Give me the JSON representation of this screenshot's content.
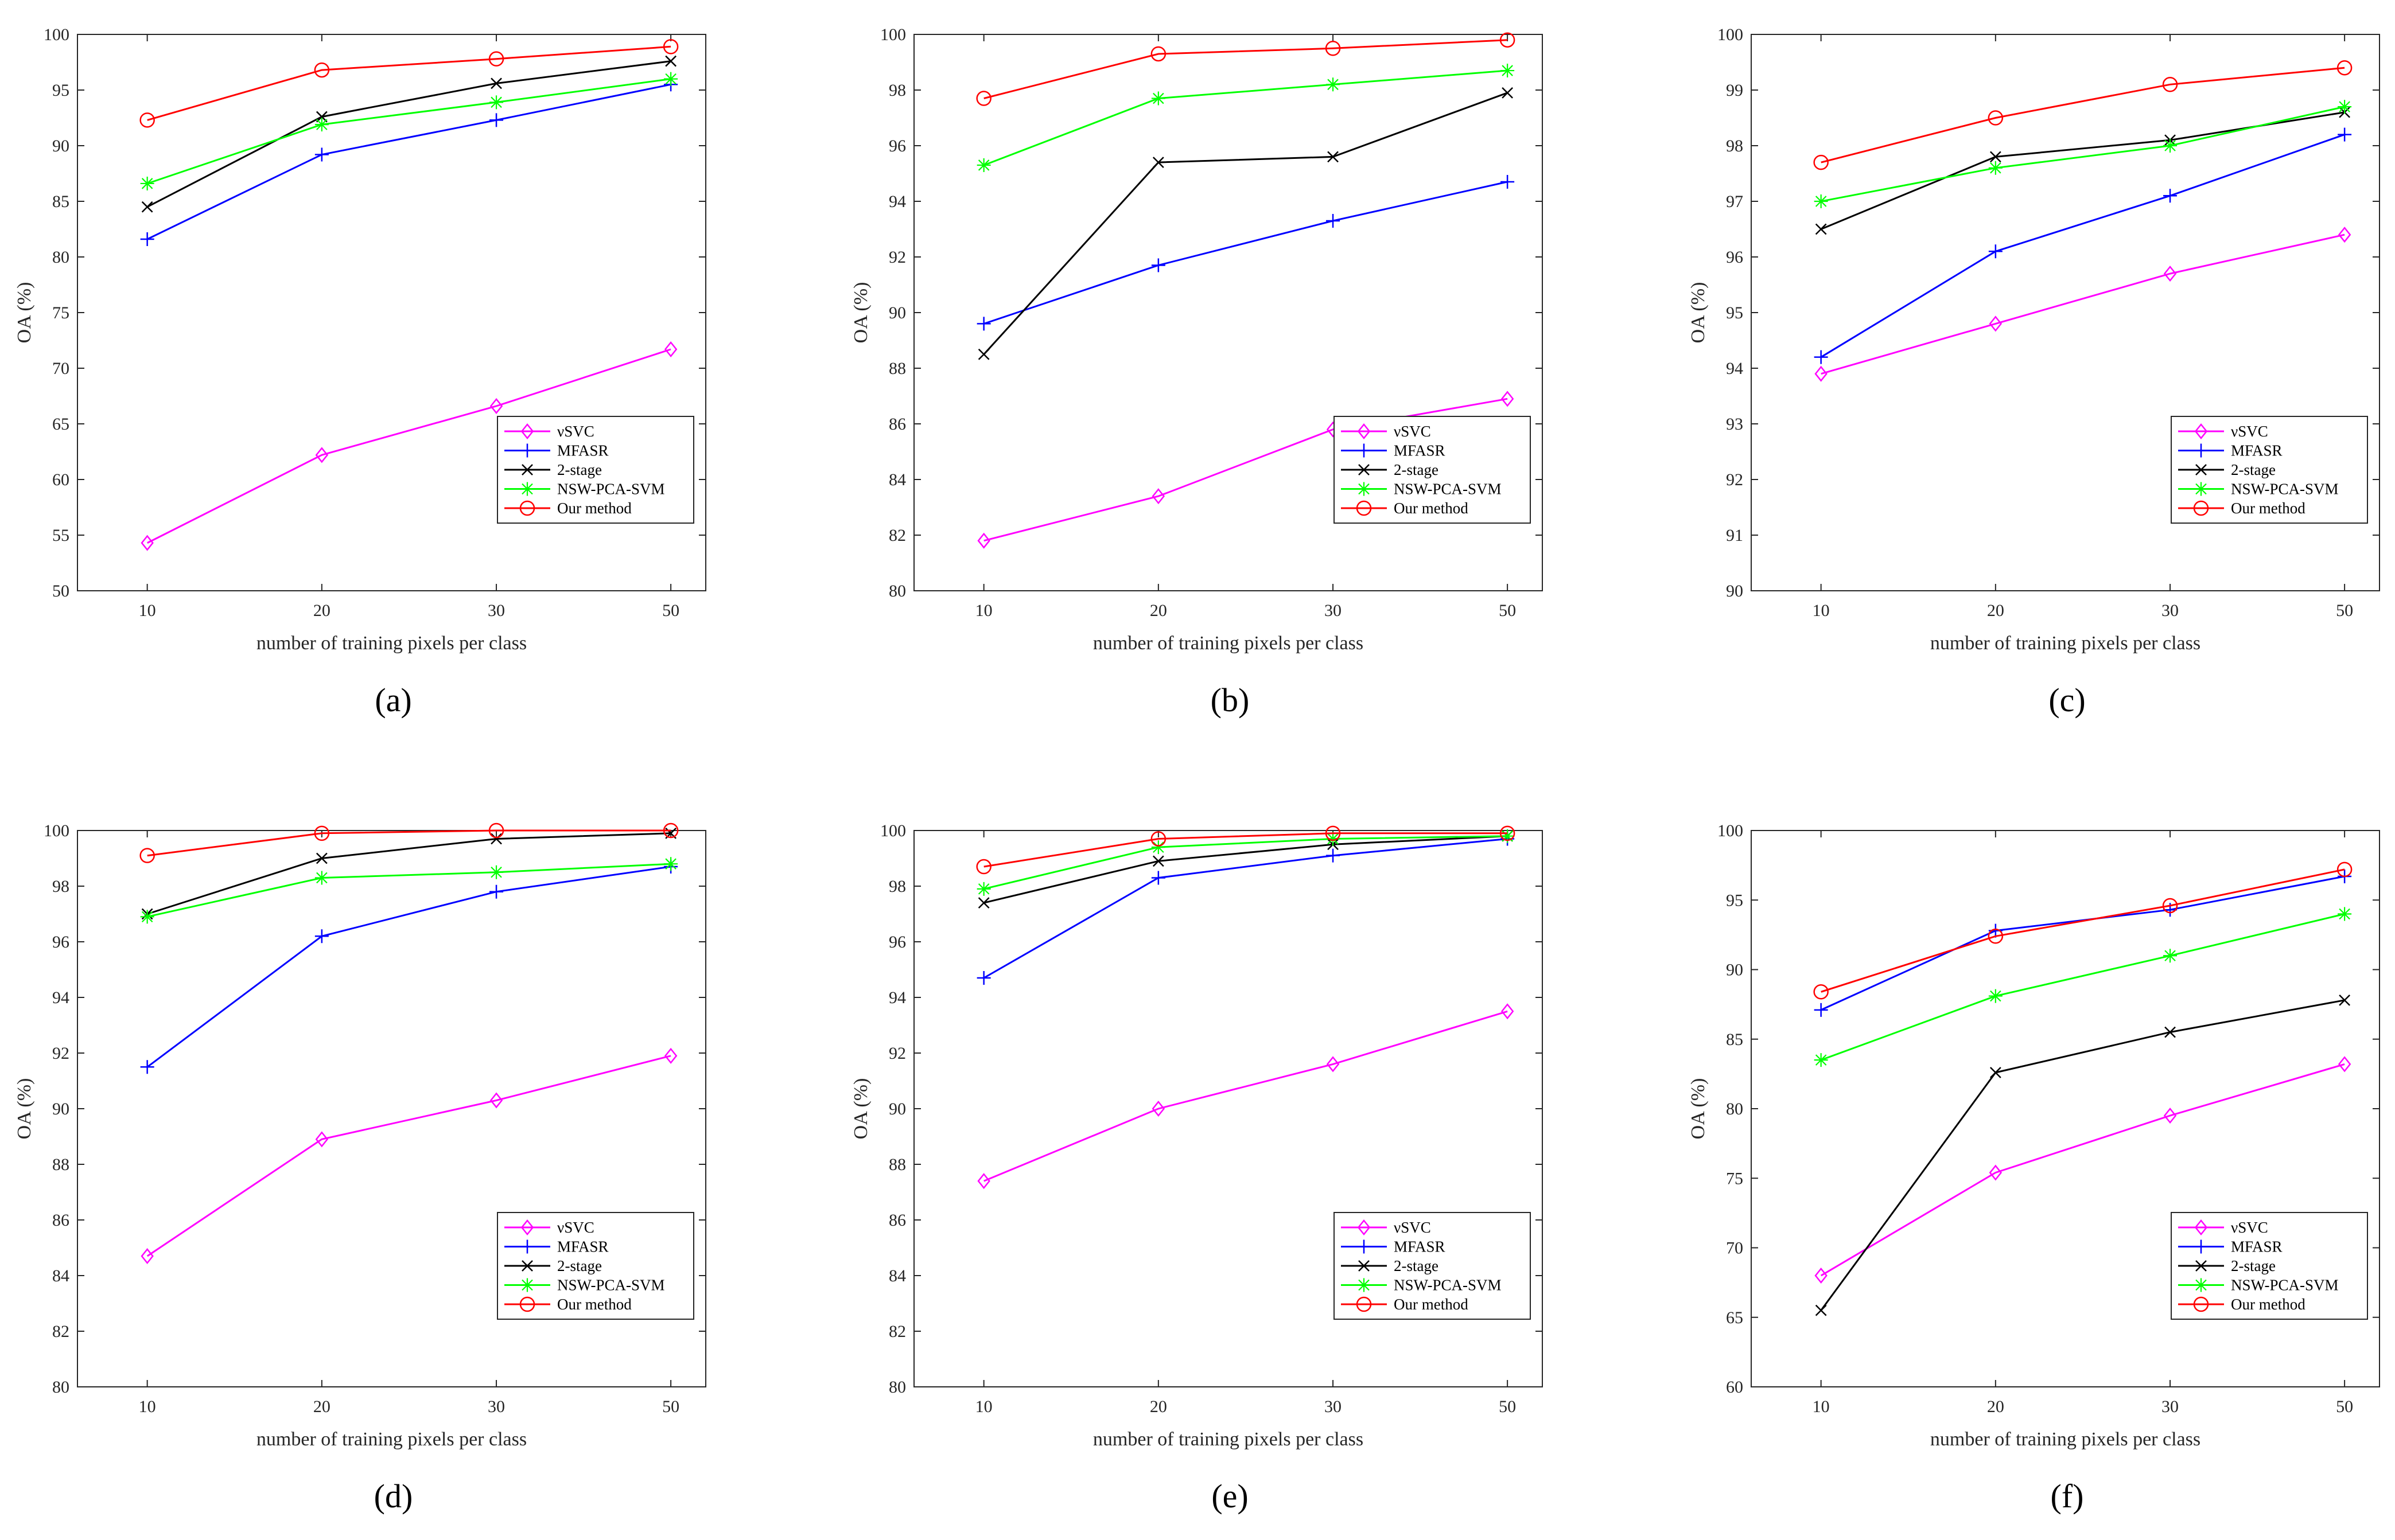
{
  "figure": {
    "series_meta": [
      {
        "name": "νSVC",
        "color": "#ff00ff",
        "marker": "diamond"
      },
      {
        "name": "MFASR",
        "color": "#0000ff",
        "marker": "plus"
      },
      {
        "name": "2-stage",
        "color": "#000000",
        "marker": "x"
      },
      {
        "name": "NSW-PCA-SVM",
        "color": "#00ff00",
        "marker": "star"
      },
      {
        "name": "Our method",
        "color": "#ff0000",
        "marker": "circle"
      }
    ]
  },
  "chart_data": [
    {
      "type": "line",
      "caption": "(a)",
      "x": [
        10,
        20,
        30,
        50
      ],
      "xlabel": "number of training pixels per class",
      "ylabel": "OA (%)",
      "ylim": [
        50,
        100
      ],
      "yticks": [
        50,
        55,
        60,
        65,
        70,
        75,
        80,
        85,
        90,
        95,
        100
      ],
      "series": [
        {
          "name": "νSVC",
          "values": [
            54.3,
            62.2,
            66.6,
            71.7
          ]
        },
        {
          "name": "MFASR",
          "values": [
            81.6,
            89.2,
            92.3,
            95.5
          ]
        },
        {
          "name": "2-stage",
          "values": [
            84.5,
            92.6,
            95.6,
            97.6
          ]
        },
        {
          "name": "NSW-PCA-SVM",
          "values": [
            86.6,
            91.9,
            93.9,
            96.0
          ]
        },
        {
          "name": "Our method",
          "values": [
            92.3,
            96.8,
            97.8,
            98.9
          ]
        }
      ]
    },
    {
      "type": "line",
      "caption": "(b)",
      "x": [
        10,
        20,
        30,
        50
      ],
      "xlabel": "number of training pixels per class",
      "ylabel": "OA (%)",
      "ylim": [
        80,
        100
      ],
      "yticks": [
        80,
        82,
        84,
        86,
        88,
        90,
        92,
        94,
        96,
        98,
        100
      ],
      "series": [
        {
          "name": "νSVC",
          "values": [
            81.8,
            83.4,
            85.8,
            86.9
          ]
        },
        {
          "name": "MFASR",
          "values": [
            89.6,
            91.7,
            93.3,
            94.7
          ]
        },
        {
          "name": "2-stage",
          "values": [
            88.5,
            95.4,
            95.6,
            97.9
          ]
        },
        {
          "name": "NSW-PCA-SVM",
          "values": [
            95.3,
            97.7,
            98.2,
            98.7
          ]
        },
        {
          "name": "Our method",
          "values": [
            97.7,
            99.3,
            99.5,
            99.8
          ]
        }
      ]
    },
    {
      "type": "line",
      "caption": "(c)",
      "x": [
        10,
        20,
        30,
        50
      ],
      "xlabel": "number of training pixels per class",
      "ylabel": "OA (%)",
      "ylim": [
        90,
        100
      ],
      "yticks": [
        90,
        91,
        92,
        93,
        94,
        95,
        96,
        97,
        98,
        99,
        100
      ],
      "series": [
        {
          "name": "νSVC",
          "values": [
            93.9,
            94.8,
            95.7,
            96.4
          ]
        },
        {
          "name": "MFASR",
          "values": [
            94.2,
            96.1,
            97.1,
            98.2
          ]
        },
        {
          "name": "2-stage",
          "values": [
            96.5,
            97.8,
            98.1,
            98.6
          ]
        },
        {
          "name": "NSW-PCA-SVM",
          "values": [
            97.0,
            97.6,
            98.0,
            98.7
          ]
        },
        {
          "name": "Our method",
          "values": [
            97.7,
            98.5,
            99.1,
            99.4
          ]
        }
      ]
    },
    {
      "type": "line",
      "caption": "(d)",
      "x": [
        10,
        20,
        30,
        50
      ],
      "xlabel": "number of training pixels per class",
      "ylabel": "OA (%)",
      "ylim": [
        80,
        100
      ],
      "yticks": [
        80,
        82,
        84,
        86,
        88,
        90,
        92,
        94,
        96,
        98,
        100
      ],
      "series": [
        {
          "name": "νSVC",
          "values": [
            84.7,
            88.9,
            90.3,
            91.9
          ]
        },
        {
          "name": "MFASR",
          "values": [
            91.5,
            96.2,
            97.8,
            98.7
          ]
        },
        {
          "name": "2-stage",
          "values": [
            97.0,
            99.0,
            99.7,
            99.9
          ]
        },
        {
          "name": "NSW-PCA-SVM",
          "values": [
            96.9,
            98.3,
            98.5,
            98.8
          ]
        },
        {
          "name": "Our method",
          "values": [
            99.1,
            99.9,
            100.0,
            100.0
          ]
        }
      ]
    },
    {
      "type": "line",
      "caption": "(e)",
      "x": [
        10,
        20,
        30,
        50
      ],
      "xlabel": "number of training pixels per class",
      "ylabel": "OA (%)",
      "ylim": [
        80,
        100
      ],
      "yticks": [
        80,
        82,
        84,
        86,
        88,
        90,
        92,
        94,
        96,
        98,
        100
      ],
      "series": [
        {
          "name": "νSVC",
          "values": [
            87.4,
            90.0,
            91.6,
            93.5
          ]
        },
        {
          "name": "MFASR",
          "values": [
            94.7,
            98.3,
            99.1,
            99.7
          ]
        },
        {
          "name": "2-stage",
          "values": [
            97.4,
            98.9,
            99.5,
            99.8
          ]
        },
        {
          "name": "NSW-PCA-SVM",
          "values": [
            97.9,
            99.4,
            99.7,
            99.8
          ]
        },
        {
          "name": "Our method",
          "values": [
            98.7,
            99.7,
            99.9,
            99.9
          ]
        }
      ]
    },
    {
      "type": "line",
      "caption": "(f)",
      "x": [
        10,
        20,
        30,
        50
      ],
      "xlabel": "number of training pixels per class",
      "ylabel": "OA (%)",
      "ylim": [
        60,
        100
      ],
      "yticks": [
        60,
        65,
        70,
        75,
        80,
        85,
        90,
        95,
        100
      ],
      "series": [
        {
          "name": "νSVC",
          "values": [
            68.0,
            75.4,
            79.5,
            83.2
          ]
        },
        {
          "name": "MFASR",
          "values": [
            87.1,
            92.8,
            94.3,
            96.7
          ]
        },
        {
          "name": "2-stage",
          "values": [
            65.5,
            82.6,
            85.5,
            87.8
          ]
        },
        {
          "name": "NSW-PCA-SVM",
          "values": [
            83.5,
            88.1,
            91.0,
            94.0
          ]
        },
        {
          "name": "Our method",
          "values": [
            88.4,
            92.4,
            94.6,
            97.2
          ]
        }
      ]
    }
  ]
}
